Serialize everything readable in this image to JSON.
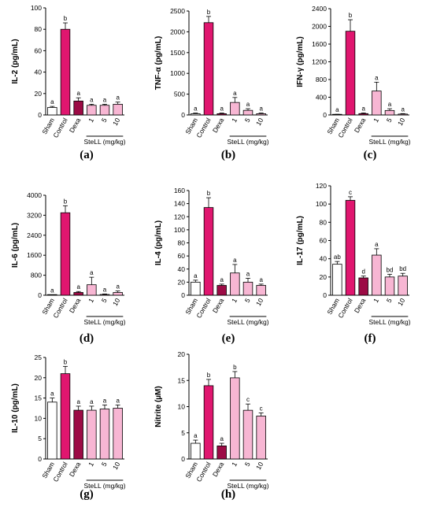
{
  "colors": {
    "sham": "#ffffff",
    "control": "#e0166f",
    "dexa": "#9c0b45",
    "stell": "#f7b6d3",
    "stroke": "#000000"
  },
  "chart_data": [
    {
      "type": "bar",
      "panel": "(a)",
      "ylabel": "IL-2 (pg/mL)",
      "ylim": [
        0,
        100
      ],
      "yticks": [
        0,
        20,
        40,
        60,
        80,
        100
      ],
      "categories": [
        "Sham",
        "Control",
        "Dexa",
        "1",
        "5",
        "10"
      ],
      "group_label": "SteLL (mg/kg)",
      "values": [
        7,
        80,
        13,
        9,
        9,
        10
      ],
      "errors": [
        1,
        6,
        3,
        1,
        1,
        2
      ],
      "letters": [
        "a",
        "b",
        "a",
        "a",
        "a",
        "a"
      ]
    },
    {
      "type": "bar",
      "panel": "(b)",
      "ylabel": "TNF-α (pg/mL)",
      "ylim": [
        0,
        2500
      ],
      "yticks": [
        0,
        500,
        1000,
        1500,
        2000,
        2500
      ],
      "categories": [
        "Sham",
        "Control",
        "Dexa",
        "1",
        "5",
        "10"
      ],
      "group_label": "SteLL (mg/kg)",
      "values": [
        30,
        2220,
        30,
        300,
        110,
        30
      ],
      "errors": [
        15,
        150,
        15,
        120,
        40,
        15
      ],
      "letters": [
        "a",
        "b",
        "a",
        "a",
        "a",
        "a"
      ]
    },
    {
      "type": "bar",
      "panel": "(c)",
      "ylabel": "IFN-γ (pg/mL)",
      "ylim": [
        0,
        2400
      ],
      "yticks": [
        0,
        400,
        800,
        1200,
        1600,
        2000,
        2400
      ],
      "categories": [
        "Sham",
        "Control",
        "Dexa",
        "1",
        "5",
        "10"
      ],
      "group_label": "SteLL (mg/kg)",
      "values": [
        10,
        1890,
        30,
        540,
        100,
        20
      ],
      "errors": [
        5,
        260,
        15,
        200,
        40,
        10
      ],
      "letters": [
        "a",
        "b",
        "a",
        "a",
        "a",
        "a"
      ]
    },
    {
      "type": "bar",
      "panel": "(d)",
      "ylabel": "IL-6 (pg/mL)",
      "ylim": [
        0,
        4000
      ],
      "yticks": [
        0,
        800,
        1600,
        2400,
        3200,
        4000
      ],
      "categories": [
        "Sham",
        "Control",
        "Dexa",
        "1",
        "5",
        "10"
      ],
      "group_label": "SteLL (mg/kg)",
      "values": [
        10,
        3300,
        110,
        420,
        30,
        110
      ],
      "errors": [
        5,
        280,
        40,
        300,
        20,
        60
      ],
      "letters": [
        "a",
        "b",
        "a",
        "a",
        "a",
        "a"
      ]
    },
    {
      "type": "bar",
      "panel": "(e)",
      "ylabel": "IL-4 (pg/mL)",
      "ylim": [
        0,
        160
      ],
      "yticks": [
        0,
        20,
        40,
        60,
        80,
        100,
        120,
        140,
        160
      ],
      "categories": [
        "Sham",
        "Control",
        "Dexa",
        "1",
        "5",
        "10"
      ],
      "group_label": "SteLL (mg/kg)",
      "values": [
        20,
        134,
        15,
        34,
        20,
        15
      ],
      "errors": [
        3,
        15,
        2,
        13,
        6,
        2
      ],
      "letters": [
        "a",
        "b",
        "a",
        "a",
        "a",
        "a"
      ]
    },
    {
      "type": "bar",
      "panel": "(f)",
      "ylabel": "IL-17 (pg/mL)",
      "ylim": [
        0,
        120
      ],
      "yticks": [
        0,
        20,
        40,
        60,
        80,
        100,
        120
      ],
      "categories": [
        "Sham",
        "Control",
        "Dexa",
        "1",
        "5",
        "10"
      ],
      "group_label": "SteLL (mg/kg)",
      "values": [
        34,
        104,
        19,
        44,
        20,
        21
      ],
      "errors": [
        3,
        4,
        2,
        7,
        3,
        3
      ],
      "letters": [
        "ab",
        "c",
        "d",
        "a",
        "bd",
        "bd"
      ]
    },
    {
      "type": "bar",
      "panel": "(g)",
      "ylabel": "IL-10 (pg/mL)",
      "ylim": [
        0,
        25
      ],
      "yticks": [
        0,
        5,
        10,
        15,
        20,
        25
      ],
      "categories": [
        "Sham",
        "Control",
        "Dexa",
        "1",
        "5",
        "10"
      ],
      "group_label": "SteLL (mg/kg)",
      "values": [
        14,
        21,
        12,
        12,
        12.3,
        12.5
      ],
      "errors": [
        1,
        1.8,
        1,
        1,
        1,
        0.8
      ],
      "letters": [
        "a",
        "b",
        "a",
        "a",
        "a",
        "a"
      ]
    },
    {
      "type": "bar",
      "panel": "(h)",
      "ylabel": "Nitrite (µM)",
      "ylim": [
        0,
        20
      ],
      "yticks": [
        0,
        5,
        10,
        15,
        20
      ],
      "categories": [
        "Sham",
        "Control",
        "Dexa",
        "1",
        "5",
        "10"
      ],
      "group_label": "SteLL (mg/kg)",
      "values": [
        3,
        14,
        2.5,
        15.5,
        9.3,
        8.2
      ],
      "errors": [
        0.6,
        1.2,
        0.5,
        1.2,
        1.2,
        0.6
      ],
      "letters": [
        "a",
        "b",
        "a",
        "b",
        "c",
        "c"
      ]
    }
  ]
}
